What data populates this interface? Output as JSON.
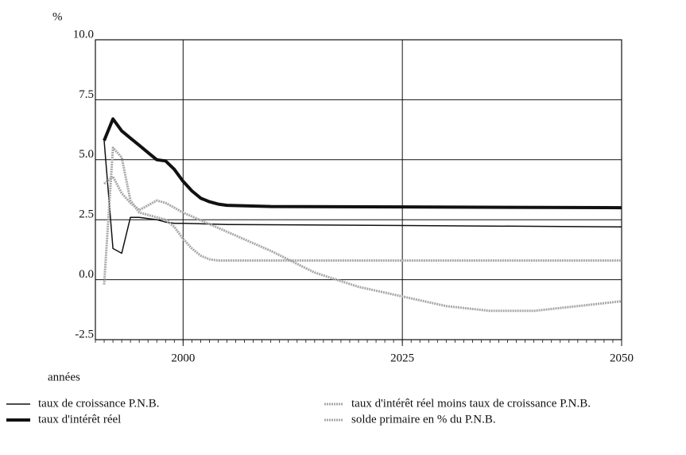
{
  "chart_data": {
    "type": "line",
    "y_label": "%",
    "x_label": "années",
    "xlim": [
      1990,
      2050
    ],
    "xticks": [
      2000,
      2025,
      2050
    ],
    "ylim": [
      -2.5,
      10
    ],
    "yticks": [
      {
        "value": -2.5,
        "label": "-2.5"
      },
      {
        "value": 0,
        "label": "0.0"
      },
      2.5,
      {
        "value": 5,
        "label": "5.0"
      },
      7.5,
      {
        "value": 10,
        "label": "10.0"
      }
    ],
    "grid": true,
    "series": [
      {
        "name": "taux de croissance P.N.B.",
        "color": "#111111",
        "width": 1.5,
        "x": [
          1991,
          1992,
          1993,
          1994,
          1995,
          1996,
          1997,
          1998,
          1999,
          2000,
          2005,
          2050
        ],
        "values": [
          5.8,
          1.3,
          1.1,
          2.6,
          2.6,
          2.55,
          2.5,
          2.4,
          2.35,
          2.35,
          2.3,
          2.2
        ]
      },
      {
        "name": "taux d'intérêt réel",
        "color": "#111111",
        "width": 4,
        "x": [
          1991,
          1992,
          1993,
          1994,
          1995,
          1996,
          1997,
          1998,
          1999,
          2000,
          2001,
          2002,
          2003,
          2004,
          2005,
          2010,
          2050
        ],
        "values": [
          5.8,
          6.7,
          6.2,
          5.9,
          5.6,
          5.3,
          5.0,
          4.95,
          4.6,
          4.1,
          3.7,
          3.4,
          3.25,
          3.15,
          3.1,
          3.05,
          3.0
        ]
      },
      {
        "name": "taux d'intérêt réel moins taux de croissance P.N.B.",
        "color": "#a8a8a8",
        "width": 3,
        "x": [
          1991,
          1992,
          1993,
          1994,
          1995,
          1996,
          1997,
          1998,
          1999,
          2000,
          2001,
          2002,
          2003,
          2004,
          2050
        ],
        "values": [
          -0.2,
          5.5,
          5.1,
          3.3,
          2.8,
          2.7,
          2.6,
          2.5,
          2.2,
          1.7,
          1.3,
          1.0,
          0.85,
          0.8,
          0.8
        ]
      },
      {
        "name": "solde primaire en % du P.N.B.",
        "color": "#a8a8a8",
        "width": 3,
        "x": [
          1991,
          1992,
          1993,
          1994,
          1995,
          1996,
          1997,
          1998,
          1999,
          2000,
          2005,
          2010,
          2015,
          2020,
          2025,
          2030,
          2035,
          2040,
          2045,
          2050
        ],
        "values": [
          4.0,
          4.3,
          3.6,
          3.2,
          2.9,
          3.1,
          3.3,
          3.2,
          3.0,
          2.8,
          2.0,
          1.2,
          0.3,
          -0.3,
          -0.7,
          -1.1,
          -1.3,
          -1.3,
          -1.1,
          -0.9
        ]
      }
    ]
  }
}
